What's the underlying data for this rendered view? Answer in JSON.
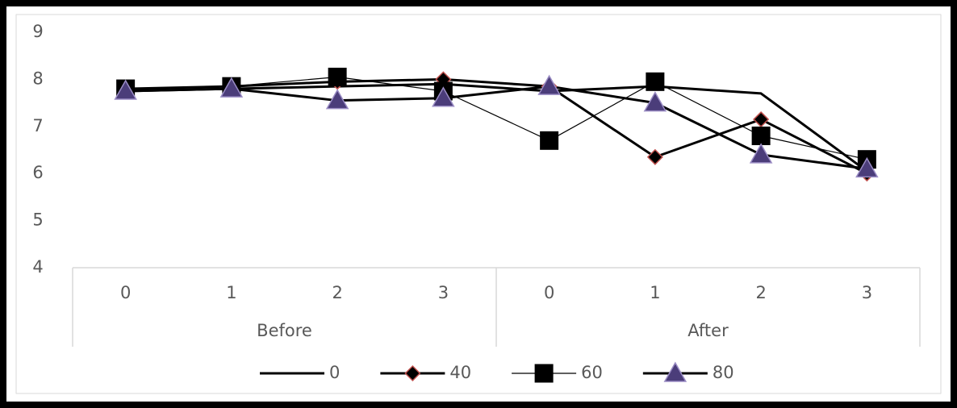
{
  "chart_data": {
    "type": "line",
    "groups": [
      {
        "name": "Before",
        "categories": [
          "0",
          "1",
          "2",
          "3"
        ]
      },
      {
        "name": "After",
        "categories": [
          "0",
          "1",
          "2",
          "3"
        ]
      }
    ],
    "series": [
      {
        "name": "0",
        "color": "#000000",
        "line_style": "thick",
        "marker": "none",
        "values": [
          7.75,
          7.8,
          7.85,
          7.9,
          7.75,
          7.85,
          7.7,
          6.05
        ]
      },
      {
        "name": "40",
        "color": "#000000",
        "line_style": "thick",
        "marker": "diamond",
        "marker_edge": "#c0504d",
        "values": [
          7.8,
          7.85,
          7.95,
          8.0,
          7.85,
          6.35,
          7.15,
          6.0
        ]
      },
      {
        "name": "60",
        "color": "#000000",
        "line_style": "thin",
        "marker": "square",
        "marker_edge": "#000000",
        "values": [
          7.8,
          7.85,
          8.05,
          7.75,
          6.7,
          7.95,
          6.8,
          6.3
        ]
      },
      {
        "name": "80",
        "color": "#000000",
        "line_style": "thick",
        "marker": "triangle",
        "marker_fill": "#4b3d7a",
        "marker_edge": "#9a8cc4",
        "values": [
          7.75,
          7.8,
          7.55,
          7.6,
          7.85,
          7.5,
          6.4,
          6.1
        ]
      }
    ],
    "ylim": [
      4,
      9
    ],
    "yticks": [
      4,
      5,
      6,
      7,
      8,
      9
    ],
    "grid": false,
    "legend": "bottom"
  }
}
